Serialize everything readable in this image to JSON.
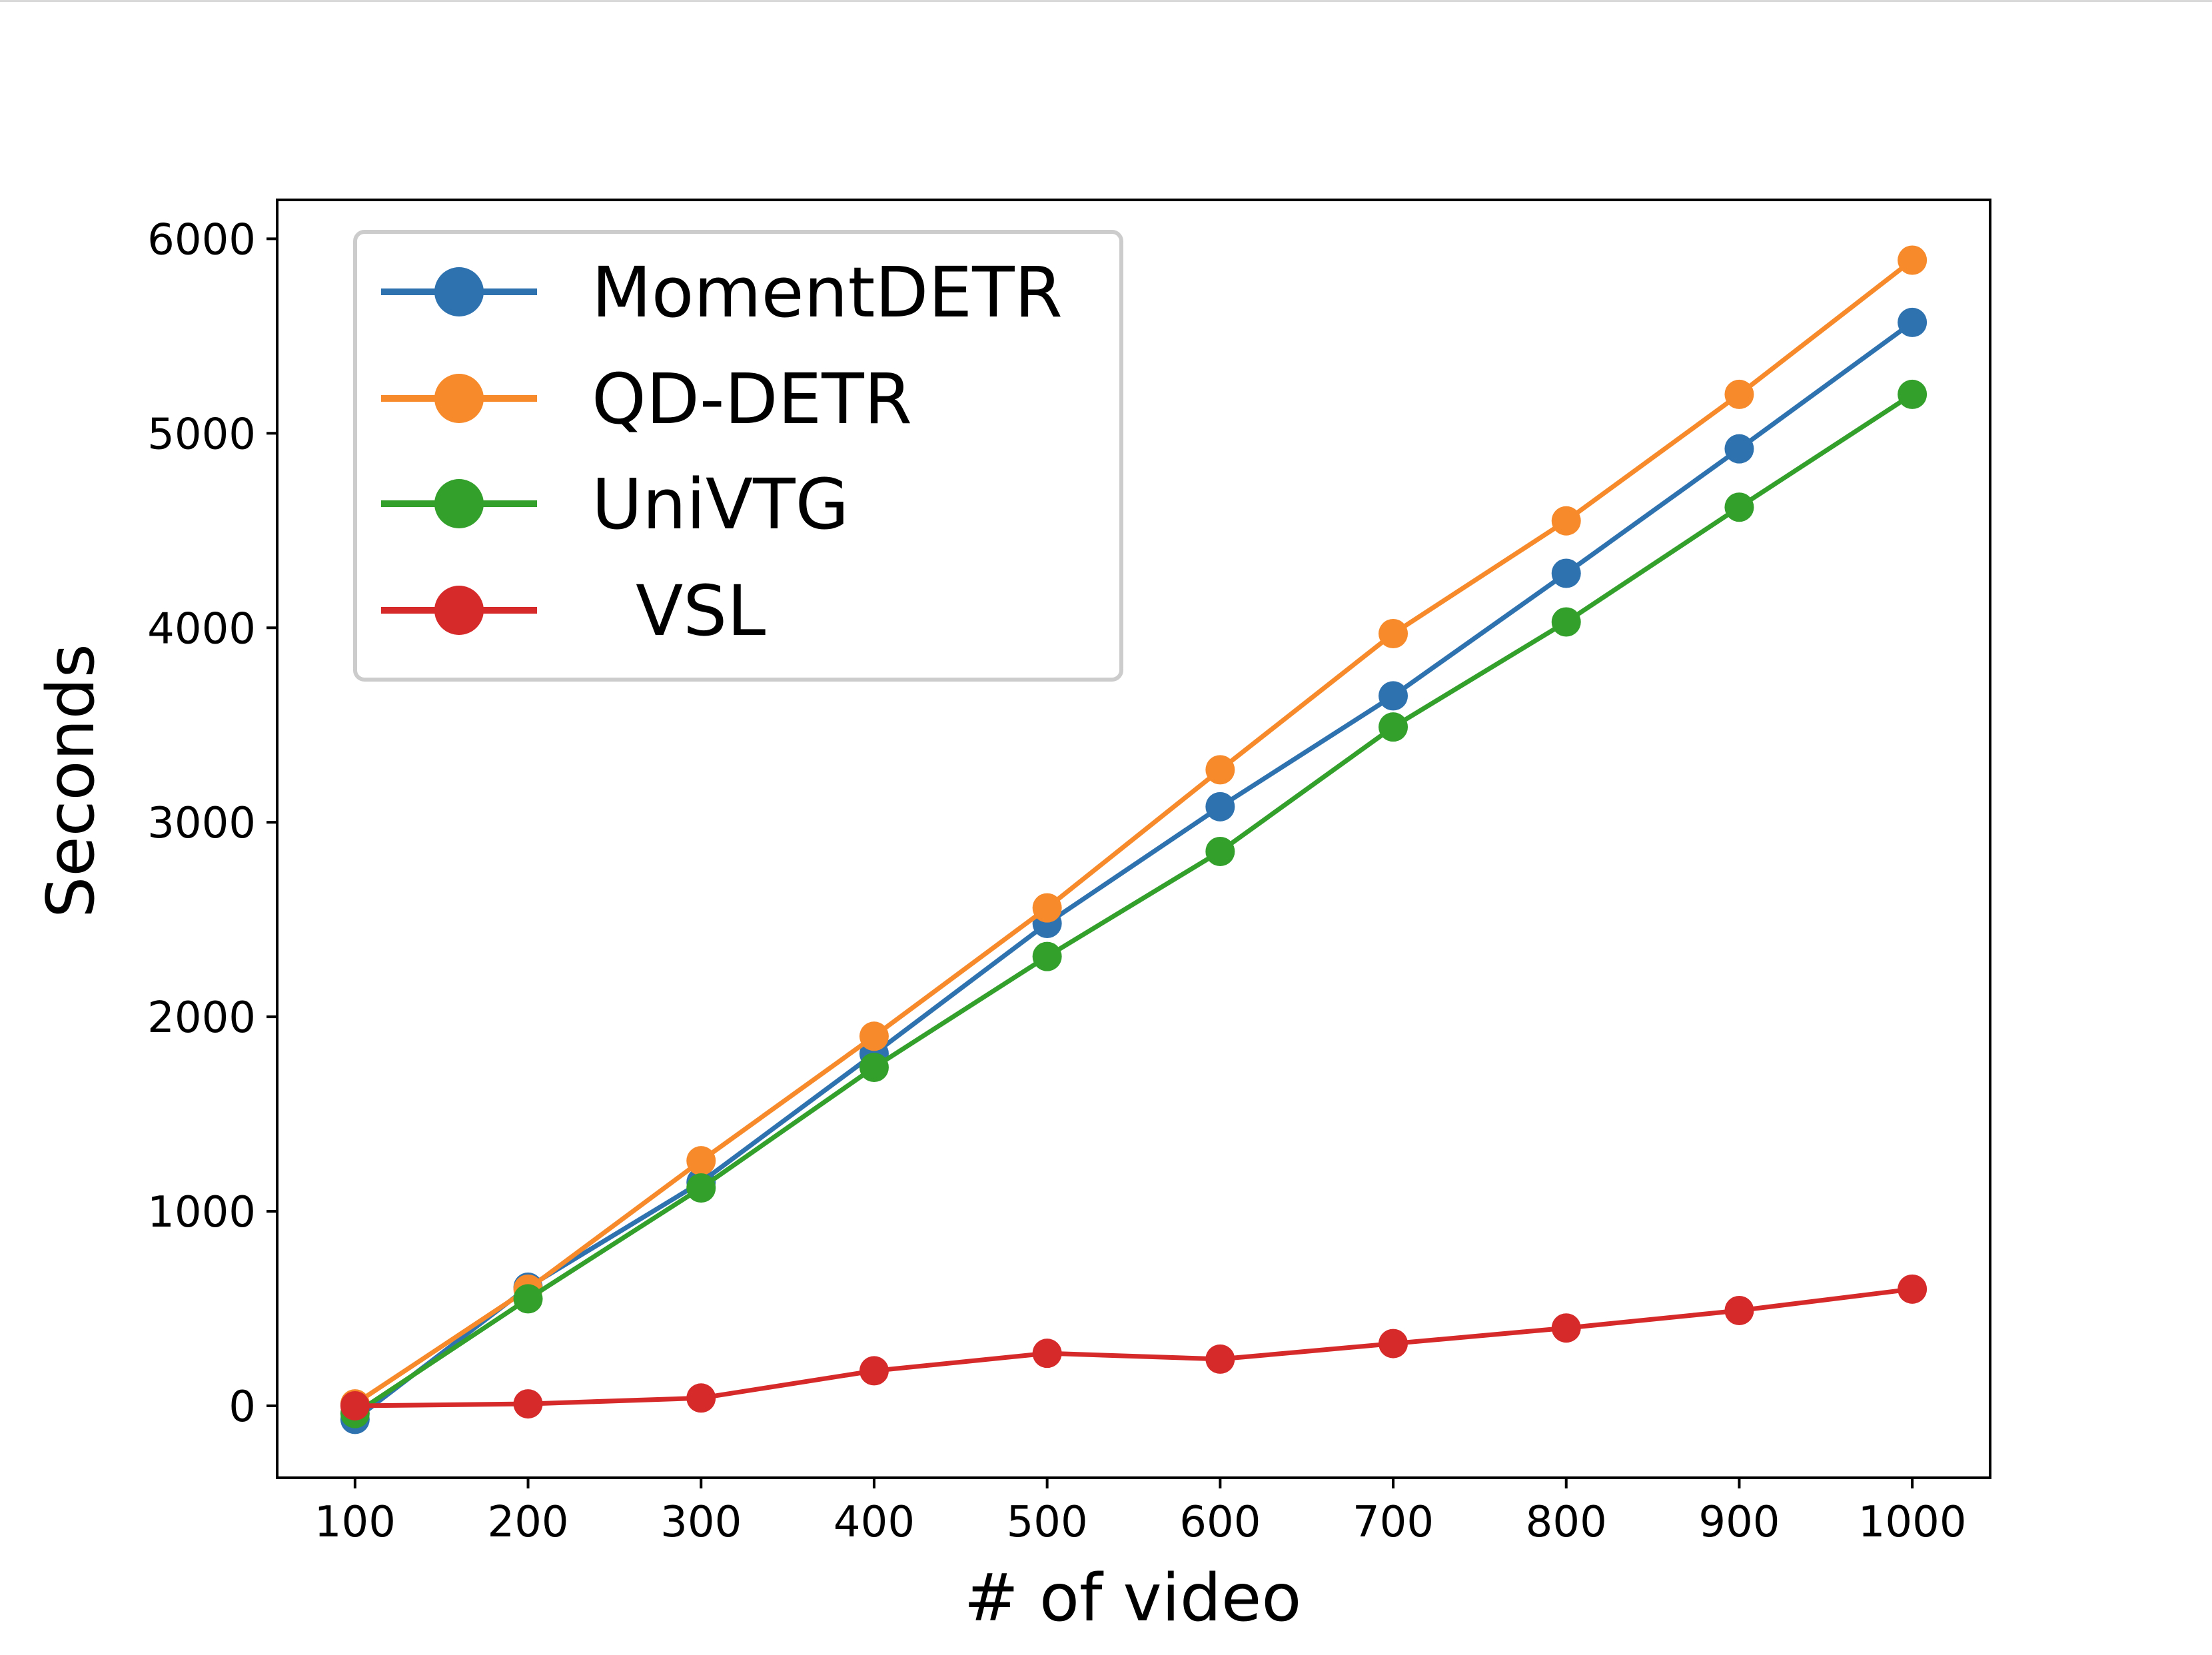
{
  "chart_data": {
    "type": "line",
    "title": "",
    "xlabel": "# of video",
    "ylabel": "Seconds",
    "x": [
      100,
      200,
      300,
      400,
      500,
      600,
      700,
      800,
      900,
      1000
    ],
    "xlim": [
      55,
      1045
    ],
    "ylim": [
      -370,
      6200
    ],
    "xticks": [
      100,
      200,
      300,
      400,
      500,
      600,
      700,
      800,
      900,
      1000
    ],
    "yticks": [
      0,
      1000,
      2000,
      3000,
      4000,
      5000,
      6000
    ],
    "grid": false,
    "legend": "top-left",
    "series": [
      {
        "name": "MomentDETR",
        "color": "#2e72b0",
        "values": [
          -70,
          610,
          1150,
          1810,
          2480,
          3080,
          3650,
          4280,
          4920,
          5570
        ]
      },
      {
        "name": "QD-DETR",
        "color": "#f78a2a",
        "values": [
          10,
          600,
          1260,
          1900,
          2560,
          3270,
          3970,
          4550,
          5200,
          5890
        ]
      },
      {
        "name": "UniVTG",
        "color": "#33a02c",
        "values": [
          -40,
          550,
          1120,
          1740,
          2310,
          2850,
          3490,
          4030,
          4620,
          5200
        ]
      },
      {
        "name": "VSL",
        "color": "#d62a2a",
        "values": [
          0,
          10,
          40,
          180,
          270,
          240,
          320,
          400,
          490,
          600
        ]
      }
    ]
  }
}
